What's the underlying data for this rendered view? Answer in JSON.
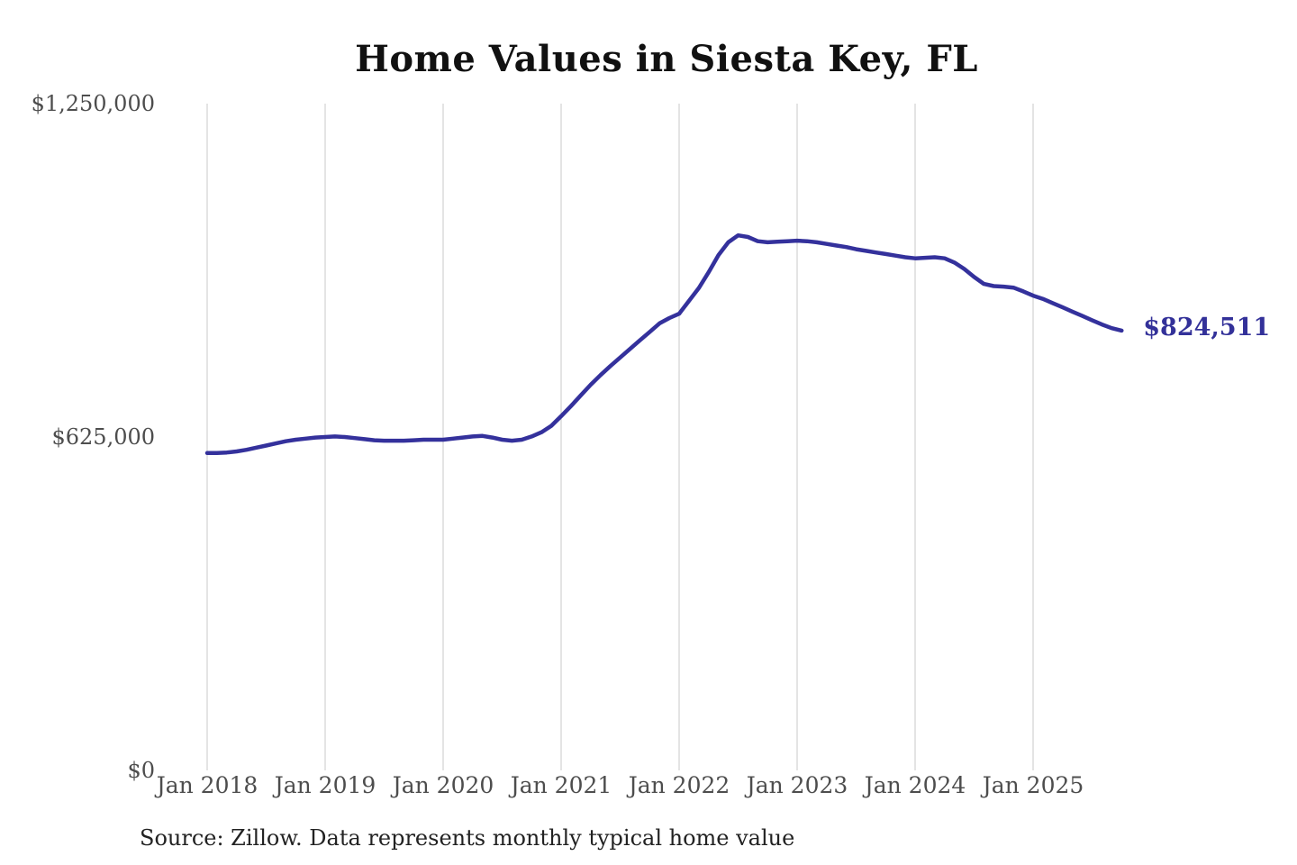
{
  "title": "Home Values in Siesta Key, FL",
  "source_note": "Source: Zillow. Data represents monthly typical home value",
  "colors": {
    "line": "#34319c",
    "value_label": "#333199",
    "grid": "#c9c9c9",
    "axis_text": "#4d4d4d",
    "title_text": "#111111",
    "source_text": "#222222",
    "background": "#ffffff"
  },
  "chart_data": {
    "type": "line",
    "title": "Home Values in Siesta Key, FL",
    "series_name": "Monthly typical home value",
    "unit": "USD",
    "x_unit": "month",
    "x_start": "Jan 2018",
    "x_end": "Oct 2025",
    "x_tick_labels": [
      "Jan 2018",
      "Jan 2019",
      "Jan 2020",
      "Jan 2021",
      "Jan 2022",
      "Jan 2023",
      "Jan 2024",
      "Jan 2025"
    ],
    "x_ticks_month_index": [
      0,
      12,
      24,
      36,
      48,
      60,
      72,
      84
    ],
    "y_ticks": [
      0,
      625000,
      1250000
    ],
    "y_tick_labels": [
      "$0",
      "$625,000",
      "$1,250,000"
    ],
    "ylim": [
      0,
      1250000
    ],
    "grid": "vertical-only",
    "legend": "none",
    "final_value": 824511,
    "final_value_label": "$824,511",
    "values_monthly": [
      595000,
      595000,
      596000,
      598000,
      601000,
      605000,
      609000,
      613000,
      617000,
      620000,
      622000,
      624000,
      625000,
      626000,
      625000,
      623000,
      621000,
      619000,
      618000,
      618000,
      618000,
      619000,
      620000,
      620000,
      620000,
      622000,
      624000,
      626000,
      627000,
      624000,
      620000,
      618000,
      620000,
      626000,
      634000,
      646000,
      664000,
      683000,
      703000,
      723000,
      741000,
      758000,
      774000,
      790000,
      806000,
      822000,
      838000,
      848000,
      856000,
      880000,
      904000,
      934000,
      966000,
      990000,
      1003000,
      1000000,
      992000,
      990000,
      991000,
      992000,
      993000,
      992000,
      990000,
      987000,
      984000,
      981000,
      977000,
      974000,
      971000,
      968000,
      965000,
      962000,
      960000,
      961000,
      962000,
      960000,
      952000,
      940000,
      925000,
      912000,
      908000,
      907000,
      905000,
      898000,
      890000,
      884000,
      876000,
      868000,
      860000,
      852000,
      844000,
      836000,
      829000,
      824511
    ]
  }
}
